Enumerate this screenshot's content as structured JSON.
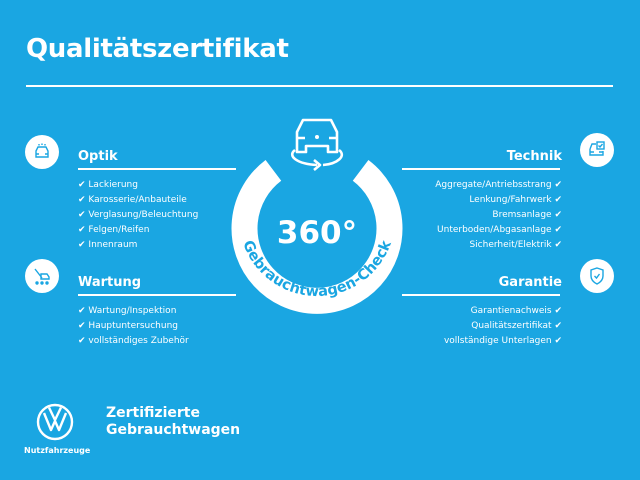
{
  "title": "Qualitätszertifikat",
  "check_mark": "✔",
  "colors": {
    "background": "#1aa6e2",
    "foreground": "#ffffff"
  },
  "center_badge": {
    "big_text": "360°",
    "arc_text": "Gebrauchtwagen-Check",
    "icon": "car-rotate-icon"
  },
  "sections": {
    "optik": {
      "title": "Optik",
      "icon": "car-lights-icon",
      "items": [
        "Lackierung",
        "Karosserie/Anbauteile",
        "Verglasung/Beleuchtung",
        "Felgen/Reifen",
        "Innenraum"
      ]
    },
    "wartung": {
      "title": "Wartung",
      "icon": "car-wrench-icon",
      "items": [
        "Wartung/Inspektion",
        "Hauptuntersuchung",
        "vollständiges Zubehör"
      ]
    },
    "technik": {
      "title": "Technik",
      "icon": "car-checklist-icon",
      "items": [
        "Aggregate/Antriebsstrang",
        "Lenkung/Fahrwerk",
        "Bremsanlage",
        "Unterboden/Abgasanlage",
        "Sicherheit/Elektrik"
      ]
    },
    "garantie": {
      "title": "Garantie",
      "icon": "shield-check-icon",
      "items": [
        "Garantienachweis",
        "Qualitätszertifikat",
        "vollständige Unterlagen"
      ]
    }
  },
  "footer": {
    "brand_line1": "Zertifizierte",
    "brand_line2": "Gebrauchtwagen",
    "logo_caption": "Nutzfahrzeuge",
    "logo": "vw-logo"
  }
}
